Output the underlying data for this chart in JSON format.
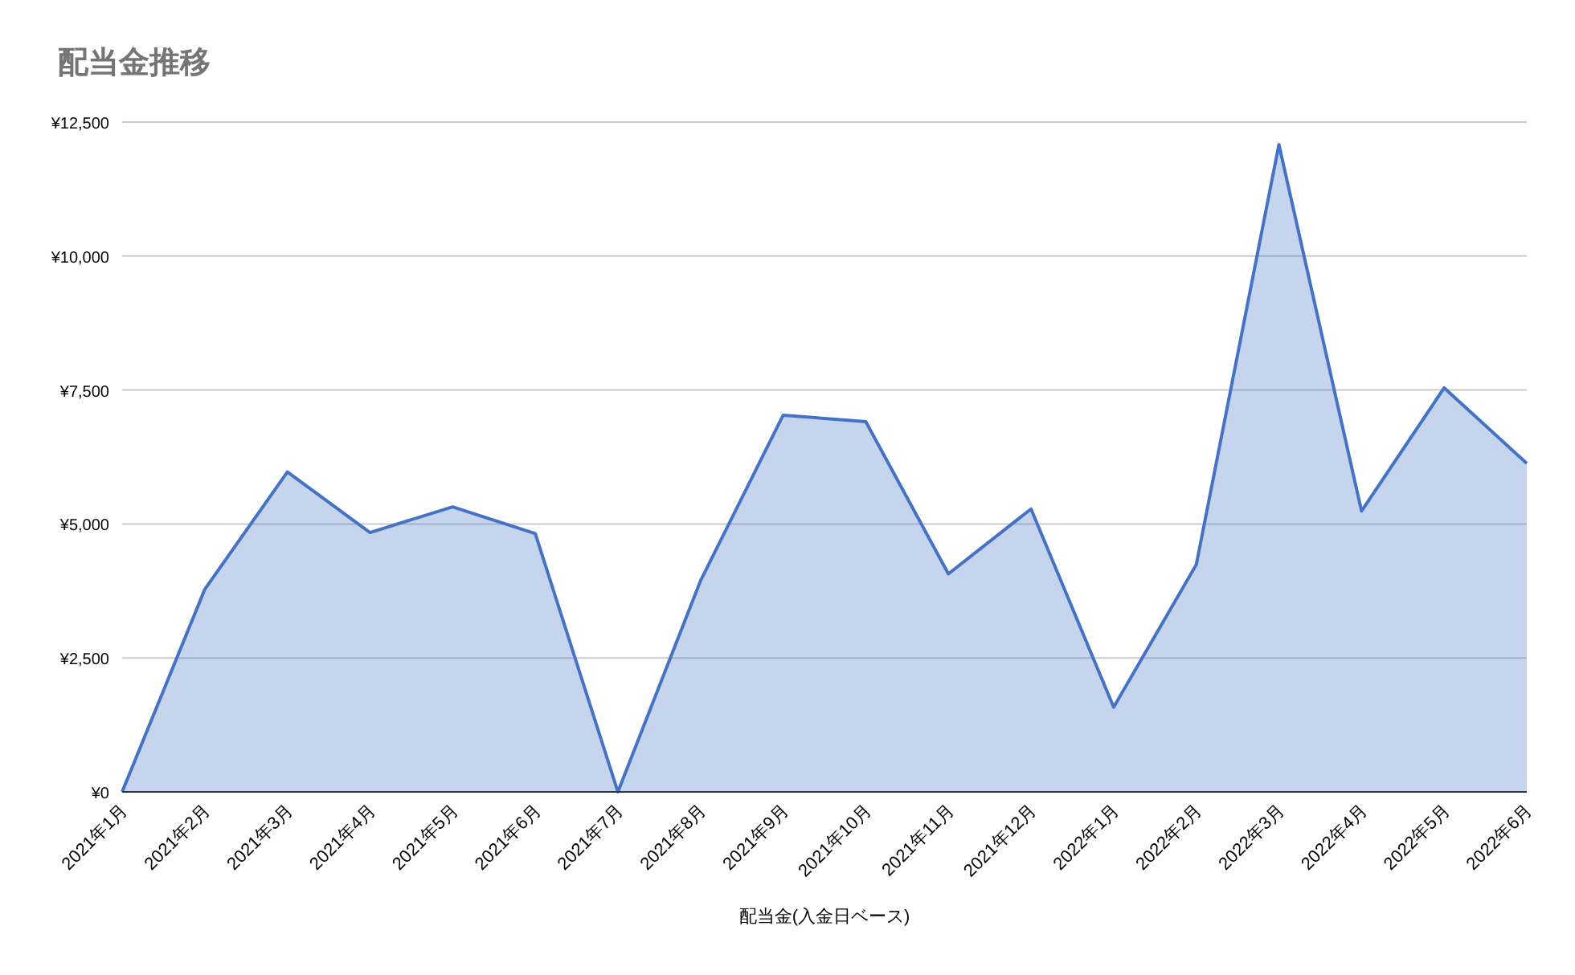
{
  "chart_data": {
    "type": "area",
    "title": "配当金推移",
    "xlabel": "配当金(入金日ベース)",
    "categories": [
      "2021年1月",
      "2021年2月",
      "2021年3月",
      "2021年4月",
      "2021年5月",
      "2021年6月",
      "2021年7月",
      "2021年8月",
      "2021年9月",
      "2021年10月",
      "2021年11月",
      "2021年12月",
      "2022年1月",
      "2022年2月",
      "2022年3月",
      "2022年4月",
      "2022年5月",
      "2022年6月"
    ],
    "series": [
      {
        "color": "#4472c4",
        "values": [
          0,
          3780,
          5970,
          4840,
          5320,
          4820,
          0,
          3940,
          7030,
          6910,
          4070,
          5280,
          1580,
          4240,
          12080,
          5240,
          7540,
          6130
        ]
      }
    ],
    "ylim": [
      0,
      12500
    ],
    "yticks": [
      {
        "value": 0,
        "label": "¥0"
      },
      {
        "value": 2500,
        "label": "¥2,500"
      },
      {
        "value": 5000,
        "label": "¥5,000"
      },
      {
        "value": 7500,
        "label": "¥7,500"
      },
      {
        "value": 10000,
        "label": "¥10,000"
      },
      {
        "value": 12500,
        "label": "¥12,500"
      }
    ],
    "grid": "y"
  }
}
